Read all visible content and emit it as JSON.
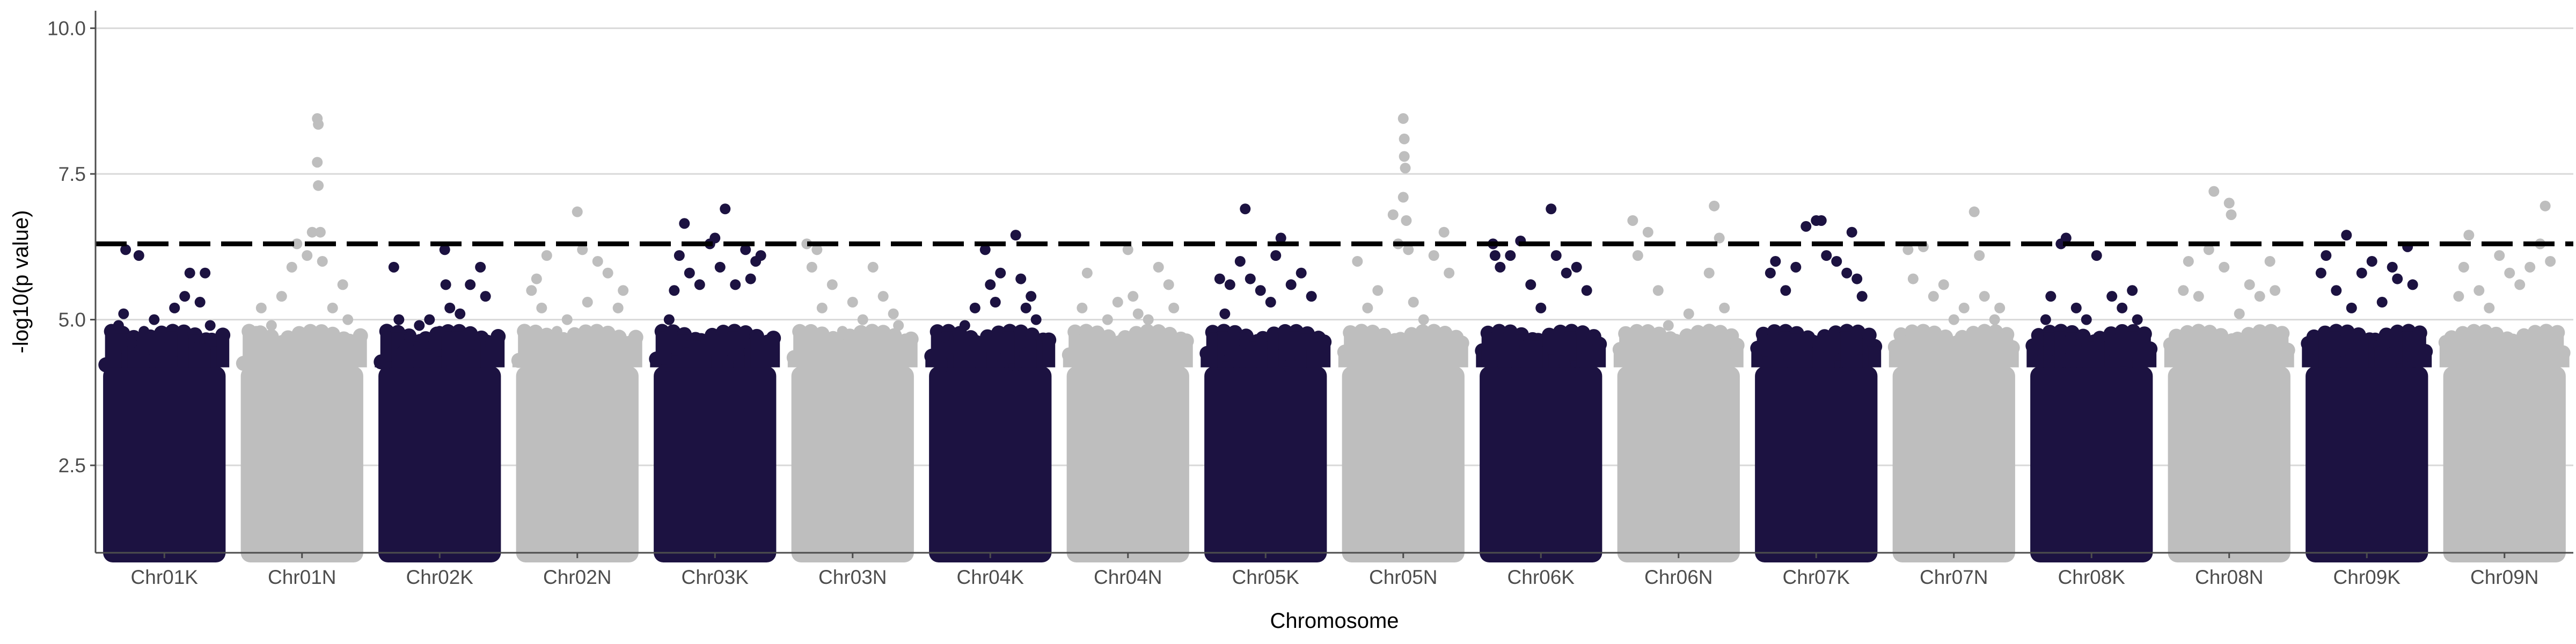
{
  "chart_data": {
    "type": "scatter",
    "subtype": "manhattan",
    "title": "",
    "xlabel": "Chromosome",
    "ylabel": "-log10(p value)",
    "ylim": [
      1.0,
      10.3
    ],
    "yticks": [
      2.5,
      5.0,
      7.5,
      10.0
    ],
    "ytick_labels": [
      "2.5",
      "5.0",
      "7.5",
      "10.0"
    ],
    "grid": "horizontal-major",
    "legend": "none",
    "threshold": {
      "y": 6.3,
      "style": "dashed",
      "color": "#000000"
    },
    "colors": {
      "K": "#1c1241",
      "N": "#bebebe"
    },
    "categories": [
      "Chr01K",
      "Chr01N",
      "Chr02K",
      "Chr02N",
      "Chr03K",
      "Chr03N",
      "Chr04K",
      "Chr04N",
      "Chr05K",
      "Chr05N",
      "Chr06K",
      "Chr06N",
      "Chr07K",
      "Chr07N",
      "Chr08K",
      "Chr08N",
      "Chr09K",
      "Chr09N"
    ],
    "series": [
      {
        "chromosome": "Chr01K",
        "color": "#1c1241",
        "points": [
          [
            0.05,
            4.9
          ],
          [
            0.1,
            5.1
          ],
          [
            0.12,
            6.2
          ],
          [
            0.18,
            4.6
          ],
          [
            0.25,
            6.1
          ],
          [
            0.3,
            4.8
          ],
          [
            0.4,
            5.0
          ],
          [
            0.5,
            4.7
          ],
          [
            0.6,
            5.2
          ],
          [
            0.7,
            5.4
          ],
          [
            0.75,
            5.8
          ],
          [
            0.85,
            5.3
          ],
          [
            0.9,
            5.8
          ],
          [
            0.95,
            4.9
          ]
        ]
      },
      {
        "chromosome": "Chr01N",
        "color": "#bebebe",
        "points": [
          [
            0.05,
            4.8
          ],
          [
            0.1,
            5.2
          ],
          [
            0.2,
            4.9
          ],
          [
            0.3,
            5.4
          ],
          [
            0.4,
            5.9
          ],
          [
            0.45,
            6.3
          ],
          [
            0.55,
            6.1
          ],
          [
            0.6,
            6.5
          ],
          [
            0.65,
            8.45
          ],
          [
            0.66,
            8.35
          ],
          [
            0.65,
            7.7
          ],
          [
            0.66,
            7.3
          ],
          [
            0.68,
            6.5
          ],
          [
            0.7,
            6.0
          ],
          [
            0.8,
            5.2
          ],
          [
            0.9,
            5.6
          ],
          [
            0.95,
            5.0
          ]
        ]
      },
      {
        "chromosome": "Chr02K",
        "color": "#1c1241",
        "points": [
          [
            0.05,
            5.9
          ],
          [
            0.1,
            5.0
          ],
          [
            0.2,
            4.7
          ],
          [
            0.3,
            4.9
          ],
          [
            0.4,
            5.0
          ],
          [
            0.5,
            4.8
          ],
          [
            0.55,
            6.2
          ],
          [
            0.56,
            5.6
          ],
          [
            0.6,
            5.2
          ],
          [
            0.7,
            5.1
          ],
          [
            0.8,
            5.6
          ],
          [
            0.9,
            5.9
          ],
          [
            0.95,
            5.4
          ]
        ]
      },
      {
        "chromosome": "Chr02N",
        "color": "#bebebe",
        "points": [
          [
            0.05,
            5.5
          ],
          [
            0.1,
            5.7
          ],
          [
            0.15,
            5.2
          ],
          [
            0.2,
            6.1
          ],
          [
            0.3,
            4.8
          ],
          [
            0.4,
            5.0
          ],
          [
            0.5,
            6.85
          ],
          [
            0.55,
            6.2
          ],
          [
            0.6,
            5.3
          ],
          [
            0.7,
            6.0
          ],
          [
            0.8,
            5.8
          ],
          [
            0.9,
            5.2
          ],
          [
            0.95,
            5.5
          ]
        ]
      },
      {
        "chromosome": "Chr03K",
        "color": "#1c1241",
        "points": [
          [
            0.05,
            5.0
          ],
          [
            0.1,
            5.5
          ],
          [
            0.15,
            6.1
          ],
          [
            0.2,
            6.65
          ],
          [
            0.25,
            5.8
          ],
          [
            0.35,
            5.6
          ],
          [
            0.45,
            6.3
          ],
          [
            0.5,
            6.4
          ],
          [
            0.55,
            5.9
          ],
          [
            0.6,
            6.9
          ],
          [
            0.7,
            5.6
          ],
          [
            0.8,
            6.2
          ],
          [
            0.85,
            5.7
          ],
          [
            0.9,
            6.0
          ],
          [
            0.95,
            6.1
          ]
        ]
      },
      {
        "chromosome": "Chr03N",
        "color": "#bebebe",
        "points": [
          [
            0.05,
            6.3
          ],
          [
            0.1,
            5.9
          ],
          [
            0.15,
            6.2
          ],
          [
            0.2,
            5.2
          ],
          [
            0.3,
            5.6
          ],
          [
            0.4,
            4.8
          ],
          [
            0.5,
            5.3
          ],
          [
            0.6,
            5.0
          ],
          [
            0.7,
            5.9
          ],
          [
            0.8,
            5.4
          ],
          [
            0.9,
            5.1
          ],
          [
            0.95,
            4.9
          ]
        ]
      },
      {
        "chromosome": "Chr04K",
        "color": "#1c1241",
        "points": [
          [
            0.05,
            4.7
          ],
          [
            0.15,
            4.5
          ],
          [
            0.25,
            4.9
          ],
          [
            0.35,
            5.2
          ],
          [
            0.45,
            6.2
          ],
          [
            0.5,
            5.6
          ],
          [
            0.55,
            5.3
          ],
          [
            0.6,
            5.8
          ],
          [
            0.75,
            6.45
          ],
          [
            0.8,
            5.7
          ],
          [
            0.85,
            5.2
          ],
          [
            0.9,
            5.4
          ],
          [
            0.95,
            5.0
          ]
        ]
      },
      {
        "chromosome": "Chr04N",
        "color": "#bebebe",
        "points": [
          [
            0.05,
            5.2
          ],
          [
            0.1,
            5.8
          ],
          [
            0.2,
            4.8
          ],
          [
            0.3,
            5.0
          ],
          [
            0.4,
            5.3
          ],
          [
            0.5,
            6.2
          ],
          [
            0.55,
            5.4
          ],
          [
            0.6,
            5.1
          ],
          [
            0.7,
            5.0
          ],
          [
            0.8,
            5.9
          ],
          [
            0.9,
            5.6
          ],
          [
            0.95,
            5.2
          ]
        ]
      },
      {
        "chromosome": "Chr05K",
        "color": "#1c1241",
        "points": [
          [
            0.05,
            5.7
          ],
          [
            0.1,
            5.1
          ],
          [
            0.15,
            5.6
          ],
          [
            0.25,
            6.0
          ],
          [
            0.3,
            6.9
          ],
          [
            0.35,
            5.7
          ],
          [
            0.45,
            5.5
          ],
          [
            0.55,
            5.3
          ],
          [
            0.6,
            6.1
          ],
          [
            0.65,
            6.4
          ],
          [
            0.75,
            5.6
          ],
          [
            0.85,
            5.8
          ],
          [
            0.95,
            5.4
          ]
        ]
      },
      {
        "chromosome": "Chr05N",
        "color": "#bebebe",
        "points": [
          [
            0.05,
            6.0
          ],
          [
            0.15,
            5.2
          ],
          [
            0.25,
            5.5
          ],
          [
            0.4,
            6.8
          ],
          [
            0.45,
            6.3
          ],
          [
            0.5,
            8.45
          ],
          [
            0.51,
            8.1
          ],
          [
            0.51,
            7.8
          ],
          [
            0.52,
            7.6
          ],
          [
            0.5,
            7.1
          ],
          [
            0.53,
            6.7
          ],
          [
            0.55,
            6.2
          ],
          [
            0.6,
            5.3
          ],
          [
            0.7,
            5.0
          ],
          [
            0.8,
            6.1
          ],
          [
            0.9,
            6.5
          ],
          [
            0.95,
            5.8
          ]
        ]
      },
      {
        "chromosome": "Chr06K",
        "color": "#1c1241",
        "points": [
          [
            0.03,
            6.3
          ],
          [
            0.05,
            6.1
          ],
          [
            0.1,
            5.9
          ],
          [
            0.2,
            6.1
          ],
          [
            0.3,
            6.35
          ],
          [
            0.4,
            5.6
          ],
          [
            0.5,
            5.2
          ],
          [
            0.6,
            6.9
          ],
          [
            0.65,
            6.1
          ],
          [
            0.75,
            5.8
          ],
          [
            0.85,
            5.9
          ],
          [
            0.95,
            5.5
          ]
        ]
      },
      {
        "chromosome": "Chr06N",
        "color": "#bebebe",
        "points": [
          [
            0.05,
            6.7
          ],
          [
            0.1,
            6.1
          ],
          [
            0.2,
            6.5
          ],
          [
            0.3,
            5.5
          ],
          [
            0.4,
            4.9
          ],
          [
            0.5,
            4.6
          ],
          [
            0.6,
            5.1
          ],
          [
            0.7,
            4.6
          ],
          [
            0.8,
            5.8
          ],
          [
            0.85,
            6.95
          ],
          [
            0.9,
            6.4
          ],
          [
            0.95,
            5.2
          ]
        ]
      },
      {
        "chromosome": "Chr07K",
        "color": "#1c1241",
        "points": [
          [
            0.05,
            5.8
          ],
          [
            0.1,
            6.0
          ],
          [
            0.2,
            5.5
          ],
          [
            0.3,
            5.9
          ],
          [
            0.4,
            6.6
          ],
          [
            0.5,
            6.7
          ],
          [
            0.55,
            6.7
          ],
          [
            0.6,
            6.1
          ],
          [
            0.7,
            6.0
          ],
          [
            0.8,
            5.8
          ],
          [
            0.85,
            6.5
          ],
          [
            0.9,
            5.7
          ],
          [
            0.95,
            5.4
          ]
        ]
      },
      {
        "chromosome": "Chr07N",
        "color": "#bebebe",
        "points": [
          [
            0.05,
            6.2
          ],
          [
            0.1,
            5.7
          ],
          [
            0.2,
            6.25
          ],
          [
            0.3,
            5.4
          ],
          [
            0.4,
            5.6
          ],
          [
            0.5,
            5.0
          ],
          [
            0.6,
            5.2
          ],
          [
            0.7,
            6.85
          ],
          [
            0.75,
            6.1
          ],
          [
            0.8,
            5.4
          ],
          [
            0.9,
            5.0
          ],
          [
            0.95,
            5.2
          ]
        ]
      },
      {
        "chromosome": "Chr08K",
        "color": "#1c1241",
        "points": [
          [
            0.05,
            5.0
          ],
          [
            0.1,
            5.4
          ],
          [
            0.2,
            6.3
          ],
          [
            0.25,
            6.4
          ],
          [
            0.35,
            5.2
          ],
          [
            0.45,
            5.0
          ],
          [
            0.55,
            6.1
          ],
          [
            0.6,
            4.7
          ],
          [
            0.7,
            5.4
          ],
          [
            0.8,
            5.2
          ],
          [
            0.9,
            5.5
          ],
          [
            0.95,
            5.0
          ]
        ]
      },
      {
        "chromosome": "Chr08N",
        "color": "#bebebe",
        "points": [
          [
            0.05,
            5.5
          ],
          [
            0.1,
            6.0
          ],
          [
            0.2,
            5.4
          ],
          [
            0.3,
            6.2
          ],
          [
            0.35,
            7.2
          ],
          [
            0.45,
            5.9
          ],
          [
            0.5,
            7.0
          ],
          [
            0.52,
            6.8
          ],
          [
            0.6,
            5.1
          ],
          [
            0.7,
            5.6
          ],
          [
            0.8,
            5.4
          ],
          [
            0.9,
            6.0
          ],
          [
            0.95,
            5.5
          ]
        ]
      },
      {
        "chromosome": "Chr09K",
        "color": "#1c1241",
        "points": [
          [
            0.05,
            5.8
          ],
          [
            0.1,
            6.1
          ],
          [
            0.2,
            5.5
          ],
          [
            0.3,
            6.45
          ],
          [
            0.35,
            5.2
          ],
          [
            0.45,
            5.8
          ],
          [
            0.55,
            6.0
          ],
          [
            0.65,
            5.3
          ],
          [
            0.75,
            5.9
          ],
          [
            0.8,
            5.7
          ],
          [
            0.9,
            6.25
          ],
          [
            0.95,
            5.6
          ]
        ]
      },
      {
        "chromosome": "Chr09N",
        "color": "#bebebe",
        "points": [
          [
            0.05,
            5.4
          ],
          [
            0.1,
            5.9
          ],
          [
            0.15,
            6.45
          ],
          [
            0.25,
            5.5
          ],
          [
            0.35,
            5.2
          ],
          [
            0.45,
            6.1
          ],
          [
            0.55,
            5.8
          ],
          [
            0.65,
            5.6
          ],
          [
            0.75,
            5.9
          ],
          [
            0.85,
            6.3
          ],
          [
            0.9,
            6.95
          ],
          [
            0.95,
            6.0
          ]
        ]
      }
    ]
  }
}
